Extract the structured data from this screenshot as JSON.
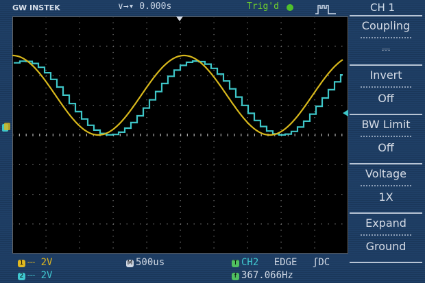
{
  "header": {
    "brand": "GW INSTEK",
    "time_position": "∨→▾ 0.000s",
    "trigger_status": "Trig'd",
    "channel_title": "CH 1"
  },
  "menu": {
    "items": [
      {
        "label": "Coupling",
        "value": "⎓"
      },
      {
        "label": "Invert",
        "value": "Off"
      },
      {
        "label": "BW Limit",
        "value": "Off"
      },
      {
        "label": "Voltage",
        "value": "1X"
      },
      {
        "label": "Expand",
        "value": "Ground"
      }
    ]
  },
  "status": {
    "ch1": {
      "badge": "1",
      "scale": "⎓ 2V",
      "color": "#e0b820"
    },
    "ch2": {
      "badge": "2",
      "scale": "⎓ 2V",
      "color": "#40c8d0"
    },
    "timebase": {
      "badge": "M",
      "value": "500us"
    },
    "trigger": {
      "badge": "T",
      "source": "CH2",
      "type": "EDGE",
      "slope_coupling": "ʃDC"
    },
    "frequency": {
      "badge": "f",
      "value": "367.066Hz"
    }
  },
  "colors": {
    "ch1": "#d8b81c",
    "ch2": "#3ec6c8",
    "trig": "#6fd02c",
    "background": "#1f3f66"
  }
}
